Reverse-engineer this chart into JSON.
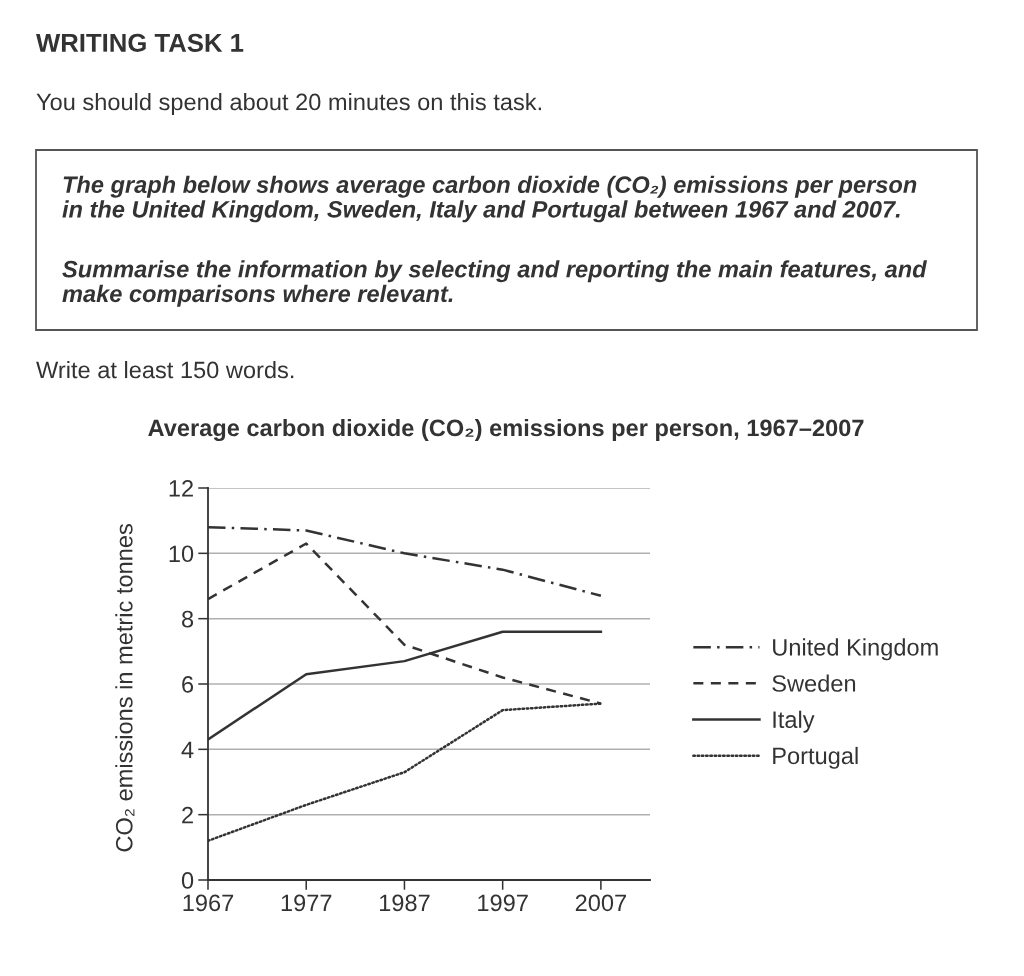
{
  "chart_data": {
    "type": "line",
    "title": "Average carbon dioxide (CO₂) emissions per person, 1967–2007",
    "ylabel": "CO₂ emissions in metric tonnes",
    "x": [
      1967,
      1977,
      1987,
      1997,
      2007
    ],
    "xlim": [
      1967,
      2012
    ],
    "xticks": [
      1967,
      1977,
      1987,
      1997,
      2007
    ],
    "ylim": [
      0,
      12
    ],
    "yticks": [
      0,
      2,
      4,
      6,
      8,
      10,
      12
    ],
    "grid": "y",
    "legend": "right",
    "series": [
      {
        "name": "United Kingdom",
        "color": "#333333",
        "line_style": "dashdot",
        "values": [
          10.8,
          10.7,
          10.0,
          9.5,
          8.7
        ]
      },
      {
        "name": "Sweden",
        "color": "#333333",
        "line_style": "dashed",
        "values": [
          8.6,
          10.3,
          7.2,
          6.2,
          5.4
        ]
      },
      {
        "name": "Italy",
        "color": "#333333",
        "line_style": "solid",
        "values": [
          4.3,
          6.3,
          6.7,
          7.6,
          7.6
        ]
      },
      {
        "name": "Portugal",
        "color": "#333333",
        "line_style": "dotted",
        "values": [
          1.2,
          2.3,
          3.3,
          5.2,
          5.4
        ]
      }
    ],
    "annotations": [
      "WRITING TASK 1",
      "You should spend about 20 minutes on this task.",
      "The graph below shows average carbon dioxide (CO₂) emissions per person\nin the United Kingdom, Sweden, Italy and Portugal between 1967 and 2007.",
      "Summarise the information by selecting and reporting the main features, and\nmake comparisons where relevant.",
      "Write at least 150 words."
    ]
  }
}
